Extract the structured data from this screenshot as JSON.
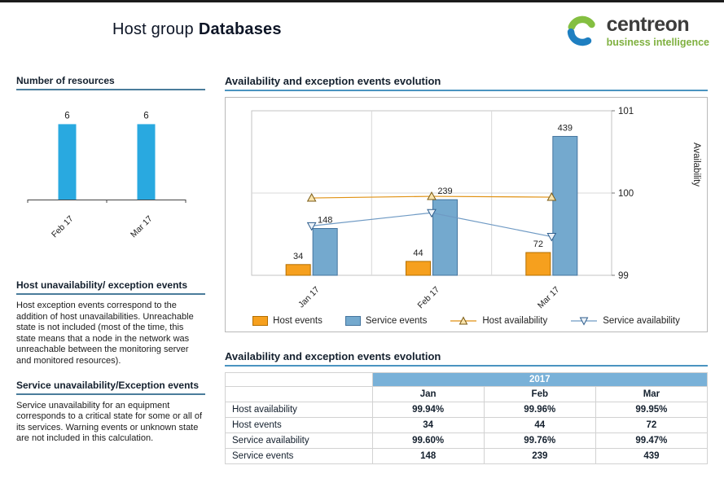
{
  "page": {
    "title_prefix": "Host group",
    "title_name": "Databases"
  },
  "logo": {
    "brand": "centreon",
    "tagline": "business intelligence",
    "brand_color": "#3C3C3B",
    "tagline_color": "#7FB03F",
    "icon_green": "#84BF41",
    "icon_blue": "#1E7FC1"
  },
  "sidebar": {
    "resources_heading": "Number of resources",
    "host_events_heading": "Host unavailability/ exception events",
    "host_events_text": "Host exception events correspond to the addition of host unavailabilities. Unreachable state is not included (most of the time, this state means that a node in the network was unreachable between the monitoring server and monitored resources).",
    "service_events_heading": "Service unavailability/Exception events",
    "service_events_text": "Service unavailability for an equipment corresponds to a critical state for some or all of its services. Warning events or unknown state are not included in this calculation."
  },
  "main": {
    "chart_section_heading": "Availability and exception events evolution",
    "legend": [
      {
        "label": "Host events",
        "swatch": "bar",
        "color": "#F6A01E"
      },
      {
        "label": "Service events",
        "swatch": "bar",
        "color": "#74A9CE"
      },
      {
        "label": "Host availability",
        "swatch": "line-triangle-up",
        "color": "#E09112"
      },
      {
        "label": "Service availability",
        "swatch": "line-triangle-down",
        "color": "#6F9AC4"
      }
    ],
    "table_section_heading": "Availability and exception events evolution",
    "table": {
      "year": "2017",
      "header_bg": "#79B1D8",
      "columns": [
        "Jan",
        "Feb",
        "Mar"
      ],
      "rows": [
        {
          "label": "Host availability",
          "values": [
            "99.94%",
            "99.96%",
            "99.95%"
          ]
        },
        {
          "label": "Host events",
          "values": [
            "34",
            "44",
            "72"
          ]
        },
        {
          "label": "Service availability",
          "values": [
            "99.60%",
            "99.76%",
            "99.47%"
          ]
        },
        {
          "label": "Service events",
          "values": [
            "148",
            "239",
            "439"
          ]
        }
      ]
    }
  },
  "chart_data": [
    {
      "id": "number-of-resources",
      "type": "bar",
      "title": "Number of resources",
      "categories": [
        "Feb 17",
        "Mar 17"
      ],
      "values": [
        6,
        6
      ],
      "ylim": [
        0,
        7
      ],
      "bar_color": "#29A9E0",
      "grid": false,
      "legend_position": "none"
    },
    {
      "id": "availability-and-exception-events",
      "type": "bar",
      "title": "Availability and exception events evolution",
      "categories": [
        "Jan 17",
        "Feb 17",
        "Mar 17"
      ],
      "series": [
        {
          "name": "Host events",
          "type": "bar",
          "axis": "left",
          "values": [
            34,
            44,
            72
          ],
          "color": "#F6A01E",
          "border": "#B36F00"
        },
        {
          "name": "Service events",
          "type": "bar",
          "axis": "left",
          "values": [
            148,
            239,
            439
          ],
          "color": "#74A9CE",
          "border": "#44749E"
        },
        {
          "name": "Host availability",
          "type": "line",
          "axis": "right",
          "values": [
            99.94,
            99.96,
            99.95
          ],
          "color": "#E09112",
          "marker": "triangle-up",
          "marker_fill": "#F8E3AC",
          "marker_stroke": "#7A5A14"
        },
        {
          "name": "Service availability",
          "type": "line",
          "axis": "right",
          "values": [
            99.6,
            99.76,
            99.47
          ],
          "color": "#6F9AC4",
          "marker": "triangle-down",
          "marker_fill": "#EDF3F9",
          "marker_stroke": "#2F5E8D"
        }
      ],
      "left_axis": {
        "range": [
          0,
          520
        ],
        "visible": false
      },
      "right_axis": {
        "label": "Availability",
        "range": [
          99,
          101
        ],
        "ticks": [
          99,
          100,
          101
        ]
      },
      "grid": true,
      "legend_position": "bottom"
    }
  ]
}
